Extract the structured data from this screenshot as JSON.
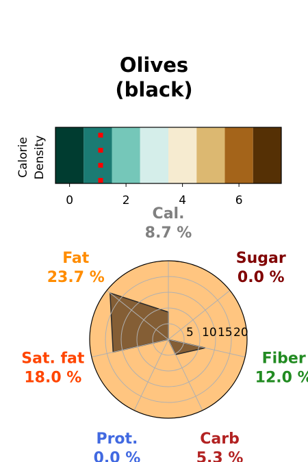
{
  "chart_data": [
    {
      "type": "heatmap",
      "title_lines": [
        "Olives",
        "(black)"
      ],
      "ylabel_lines": [
        "Calorie",
        "Density"
      ],
      "xticks": [
        0,
        2,
        4,
        6
      ],
      "xlim": [
        -0.5,
        7.5
      ],
      "cells": [
        {
          "x": 0,
          "color": "#003c30"
        },
        {
          "x": 1,
          "color": "#1b7b73"
        },
        {
          "x": 2,
          "color": "#75c7b9"
        },
        {
          "x": 3,
          "color": "#d5eeea"
        },
        {
          "x": 4,
          "color": "#f6ebd0"
        },
        {
          "x": 5,
          "color": "#dcb871"
        },
        {
          "x": 6,
          "color": "#a4641a"
        },
        {
          "x": 7,
          "color": "#553005"
        }
      ],
      "marker": {
        "x": 1.1,
        "color": "#ff0000",
        "style": "dotted vertical line"
      }
    },
    {
      "type": "radar",
      "rticks": [
        5,
        10,
        15,
        20
      ],
      "rmax": 25,
      "fill_color": "#845e35",
      "background_color": "#ffc580",
      "axes": [
        {
          "label": "Cal.",
          "value_text": "8.7 %",
          "value": 8.7,
          "color": "#808080"
        },
        {
          "label": "Sugar",
          "value_text": "0.0 %",
          "value": 0.0,
          "color": "#800000"
        },
        {
          "label": "Fiber",
          "value_text": "12.0 %",
          "value": 12.0,
          "color": "#228b22"
        },
        {
          "label": "Carb",
          "value_text": "5.3 %",
          "value": 5.3,
          "color": "#b22222"
        },
        {
          "label": "Prot.",
          "value_text": "0.0 %",
          "value": 0.0,
          "color": "#4169e1"
        },
        {
          "label": "Sat. fat",
          "value_text": "18.0 %",
          "value": 18.0,
          "color": "#ff4500"
        },
        {
          "label": "Fat",
          "value_text": "23.7 %",
          "value": 23.7,
          "color": "#ff8c00"
        }
      ]
    }
  ]
}
